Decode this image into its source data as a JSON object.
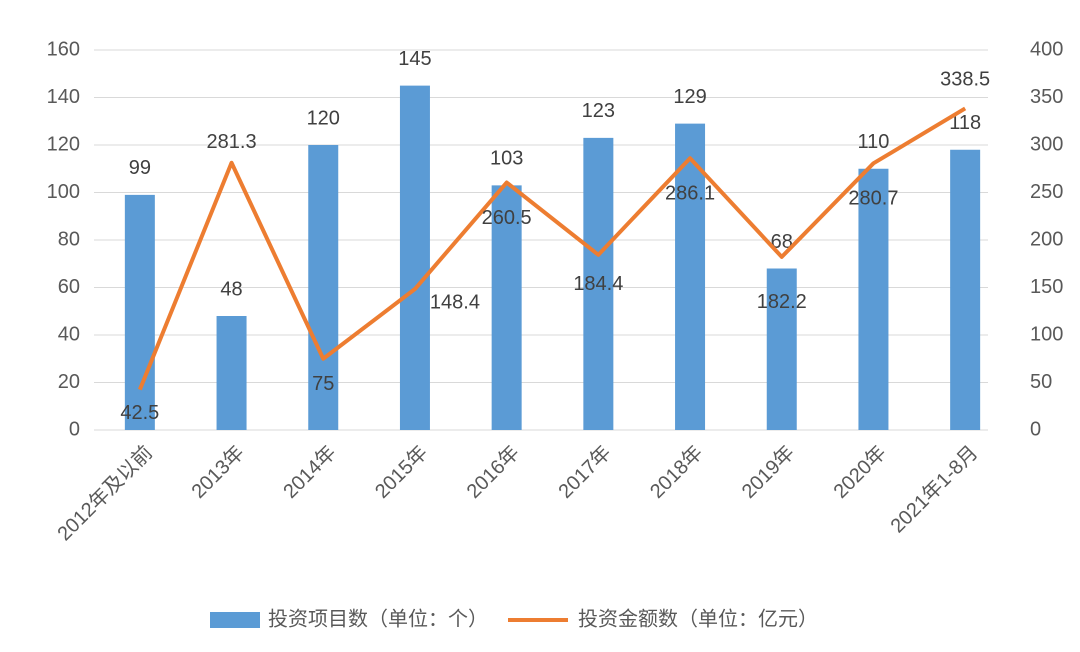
{
  "chart_data": {
    "type": "bar-line",
    "categories": [
      "2012年及以前",
      "2013年",
      "2014年",
      "2015年",
      "2016年",
      "2017年",
      "2018年",
      "2019年",
      "2020年",
      "2021年1-8月"
    ],
    "series": [
      {
        "name": "投资项目数（单位：个）",
        "type": "bar",
        "color": "#5b9bd5",
        "values": [
          99,
          48,
          120,
          145,
          103,
          123,
          129,
          68,
          110,
          118
        ]
      },
      {
        "name": "投资金额数（单位：亿元）",
        "type": "line",
        "axis": "y2",
        "color": "#ed7d31",
        "values": [
          42.5,
          281.3,
          75,
          148.4,
          260.5,
          184.4,
          286.1,
          182.2,
          280.7,
          338.5
        ]
      }
    ],
    "ylim": [
      0,
      160
    ],
    "yticks": [
      0,
      20,
      40,
      60,
      80,
      100,
      120,
      140,
      160
    ],
    "y2lim": [
      0,
      400
    ],
    "y2ticks": [
      0,
      50,
      100,
      150,
      200,
      250,
      300,
      350,
      400
    ],
    "grid": true,
    "legend": "bottom"
  }
}
